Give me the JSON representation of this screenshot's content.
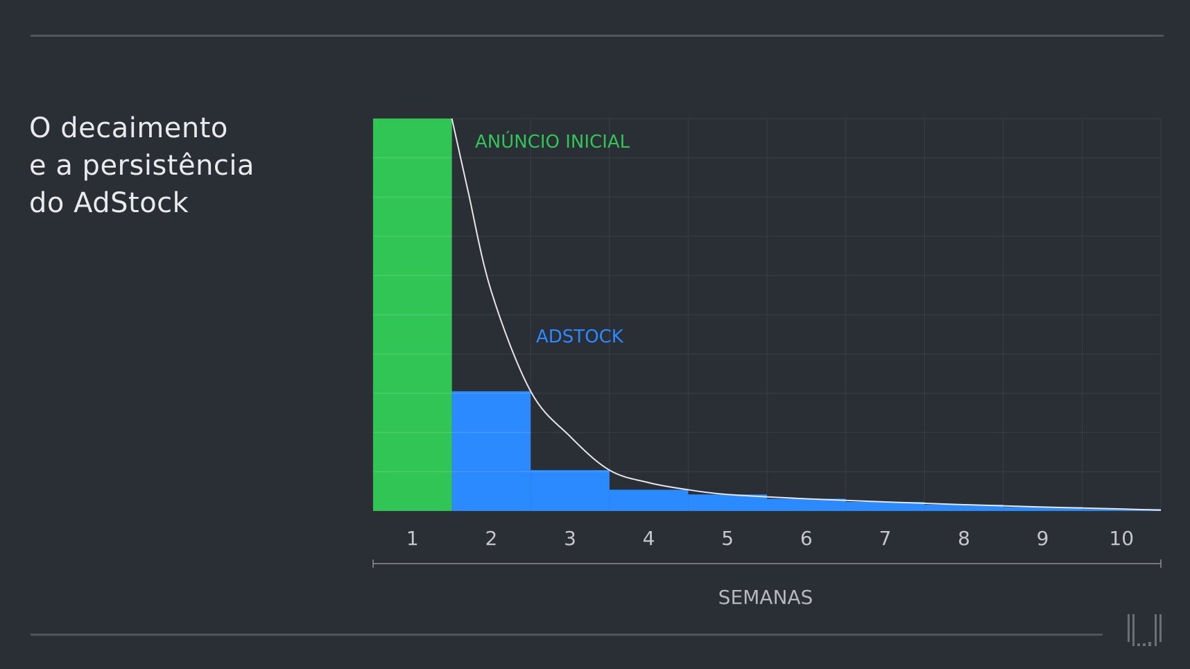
{
  "title": {
    "line1": "O decaimento",
    "line2": "e a persistência",
    "line3": "do AdStock"
  },
  "colors": {
    "background": "#2a2e35",
    "initial_ad": "#31c556",
    "adstock": "#2b8aff",
    "curve": "#e6e6e6",
    "grid": "#3a3f47"
  },
  "logo": {
    "icon": "brand-logo-icon"
  },
  "chart_data": {
    "type": "bar",
    "categories": [
      "1",
      "2",
      "3",
      "4",
      "5",
      "6",
      "7",
      "8",
      "9",
      "10"
    ],
    "series": [
      {
        "name": "ANÚNCIO INICIAL",
        "values": [
          10,
          0,
          0,
          0,
          0,
          0,
          0,
          0,
          0,
          0
        ]
      },
      {
        "name": "ADSTOCK",
        "values": [
          0,
          3.05,
          1.04,
          0.54,
          0.42,
          0.31,
          0.23,
          0.16,
          0.1,
          0.05
        ]
      }
    ],
    "curve": {
      "x": [
        1.5,
        1.7,
        2.0,
        2.5,
        3.0,
        3.5,
        4.0,
        4.5,
        5.0,
        6.0,
        7.0,
        8.0,
        9.0,
        10.0,
        10.5
      ],
      "y": [
        10,
        8.2,
        5.6,
        3.05,
        1.9,
        1.04,
        0.72,
        0.54,
        0.42,
        0.31,
        0.23,
        0.16,
        0.1,
        0.05,
        0.02
      ]
    },
    "annotations": {
      "initial": "ANÚNCIO INICIAL",
      "adstock": "ADSTOCK"
    },
    "xlabel": "SEMANAS",
    "ylabel": "",
    "ylim": [
      0,
      10
    ],
    "grid": true
  }
}
